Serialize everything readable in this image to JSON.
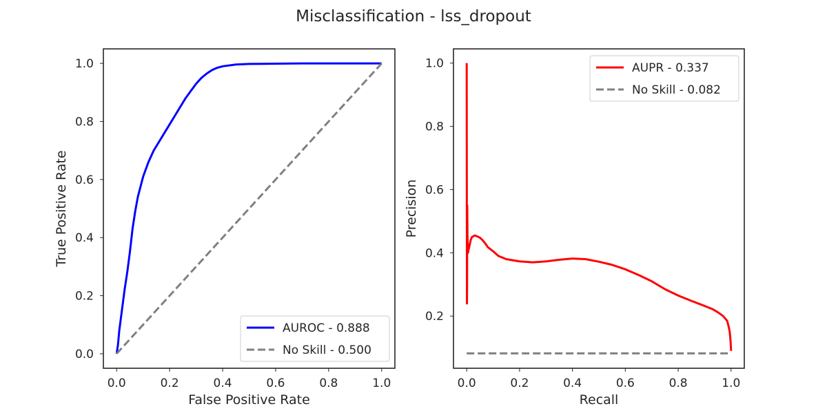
{
  "figure": {
    "title": "Misclassification - lss_dropout"
  },
  "chart_data": [
    {
      "type": "line",
      "title": "",
      "xlabel": "False Positive Rate",
      "ylabel": "True Positive Rate",
      "xlim": [
        -0.05,
        1.05
      ],
      "ylim": [
        -0.05,
        1.05
      ],
      "xticks": [
        "0.0",
        "0.2",
        "0.4",
        "0.6",
        "0.8",
        "1.0"
      ],
      "yticks": [
        "0.0",
        "0.2",
        "0.4",
        "0.6",
        "0.8",
        "1.0"
      ],
      "grid": false,
      "legend": "lower-right",
      "series": [
        {
          "name": "AUROC - 0.888",
          "color": "#0000ff",
          "style": "solid",
          "x": [
            0.0,
            0.005,
            0.01,
            0.02,
            0.03,
            0.04,
            0.05,
            0.06,
            0.07,
            0.08,
            0.1,
            0.12,
            0.14,
            0.16,
            0.18,
            0.2,
            0.22,
            0.24,
            0.26,
            0.28,
            0.3,
            0.32,
            0.34,
            0.36,
            0.38,
            0.4,
            0.45,
            0.5,
            0.6,
            0.7,
            0.8,
            0.9,
            1.0
          ],
          "y": [
            0.0,
            0.03,
            0.08,
            0.15,
            0.22,
            0.28,
            0.35,
            0.43,
            0.49,
            0.54,
            0.61,
            0.66,
            0.7,
            0.73,
            0.76,
            0.79,
            0.82,
            0.85,
            0.88,
            0.905,
            0.93,
            0.95,
            0.965,
            0.977,
            0.985,
            0.99,
            0.996,
            0.998,
            0.999,
            1.0,
            1.0,
            1.0,
            1.0
          ]
        },
        {
          "name": "No Skill - 0.500",
          "color": "#808080",
          "style": "dashed",
          "x": [
            0.0,
            1.0
          ],
          "y": [
            0.0,
            1.0
          ]
        }
      ]
    },
    {
      "type": "line",
      "title": "",
      "xlabel": "Recall",
      "ylabel": "Precision",
      "xlim": [
        -0.05,
        1.05
      ],
      "ylim": [
        0.035,
        1.045
      ],
      "xticks": [
        "0.0",
        "0.2",
        "0.4",
        "0.6",
        "0.8",
        "1.0"
      ],
      "yticks": [
        "0.2",
        "0.4",
        "0.6",
        "0.8",
        "1.0"
      ],
      "grid": false,
      "legend": "upper-right",
      "series": [
        {
          "name": "AUPR - 0.337",
          "color": "#ff0000",
          "style": "solid",
          "x": [
            0.0,
            0.0005,
            0.001,
            0.0015,
            0.002,
            0.003,
            0.004,
            0.005,
            0.007,
            0.01,
            0.015,
            0.02,
            0.03,
            0.04,
            0.05,
            0.06,
            0.07,
            0.08,
            0.1,
            0.12,
            0.15,
            0.2,
            0.25,
            0.3,
            0.35,
            0.4,
            0.45,
            0.5,
            0.55,
            0.6,
            0.65,
            0.7,
            0.75,
            0.8,
            0.85,
            0.9,
            0.93,
            0.95,
            0.97,
            0.985,
            0.99,
            0.995,
            0.998,
            1.0
          ],
          "y": [
            1.0,
            0.55,
            0.24,
            0.3,
            0.55,
            0.45,
            0.42,
            0.4,
            0.41,
            0.42,
            0.44,
            0.45,
            0.455,
            0.452,
            0.448,
            0.44,
            0.43,
            0.418,
            0.405,
            0.39,
            0.38,
            0.373,
            0.37,
            0.373,
            0.378,
            0.382,
            0.38,
            0.372,
            0.362,
            0.348,
            0.33,
            0.31,
            0.285,
            0.265,
            0.248,
            0.232,
            0.222,
            0.212,
            0.2,
            0.185,
            0.17,
            0.15,
            0.12,
            0.09
          ]
        },
        {
          "name": "No Skill - 0.082",
          "color": "#808080",
          "style": "dashed",
          "x": [
            0.0,
            1.0
          ],
          "y": [
            0.082,
            0.082
          ]
        }
      ]
    }
  ]
}
